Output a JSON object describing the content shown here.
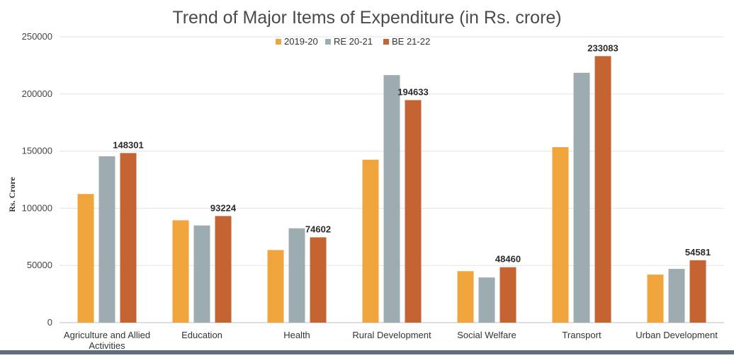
{
  "chart_data": {
    "type": "bar",
    "title": "Trend of Major Items of Expenditure (in Rs. crore)",
    "ylabel": "Rs. Crore",
    "xlabel": "",
    "ylim": [
      0,
      250000
    ],
    "yticks": [
      0,
      50000,
      100000,
      150000,
      200000,
      250000
    ],
    "grid": true,
    "legend_position": "top-center",
    "categories": [
      [
        "Agriculture and Allied",
        "Activities"
      ],
      [
        "Education"
      ],
      [
        "Health"
      ],
      [
        "Rural Development"
      ],
      [
        "Social Welfare"
      ],
      [
        "Transport"
      ],
      [
        "Urban Development"
      ]
    ],
    "series": [
      {
        "name": "2019-20",
        "color": "#f0a43c",
        "values": [
          112500,
          89500,
          63500,
          142500,
          45000,
          153500,
          42000
        ]
      },
      {
        "name": "RE 20-21",
        "color": "#9dacb1",
        "values": [
          145500,
          85000,
          82500,
          216500,
          39500,
          218500,
          47000
        ]
      },
      {
        "name": "BE 21-22",
        "color": "#c46432",
        "values": [
          148301,
          93224,
          74602,
          194633,
          48460,
          233083,
          54581
        ],
        "data_labels": [
          "148301",
          "93224",
          "74602",
          "194633",
          "48460",
          "233083",
          "54581"
        ]
      }
    ]
  }
}
